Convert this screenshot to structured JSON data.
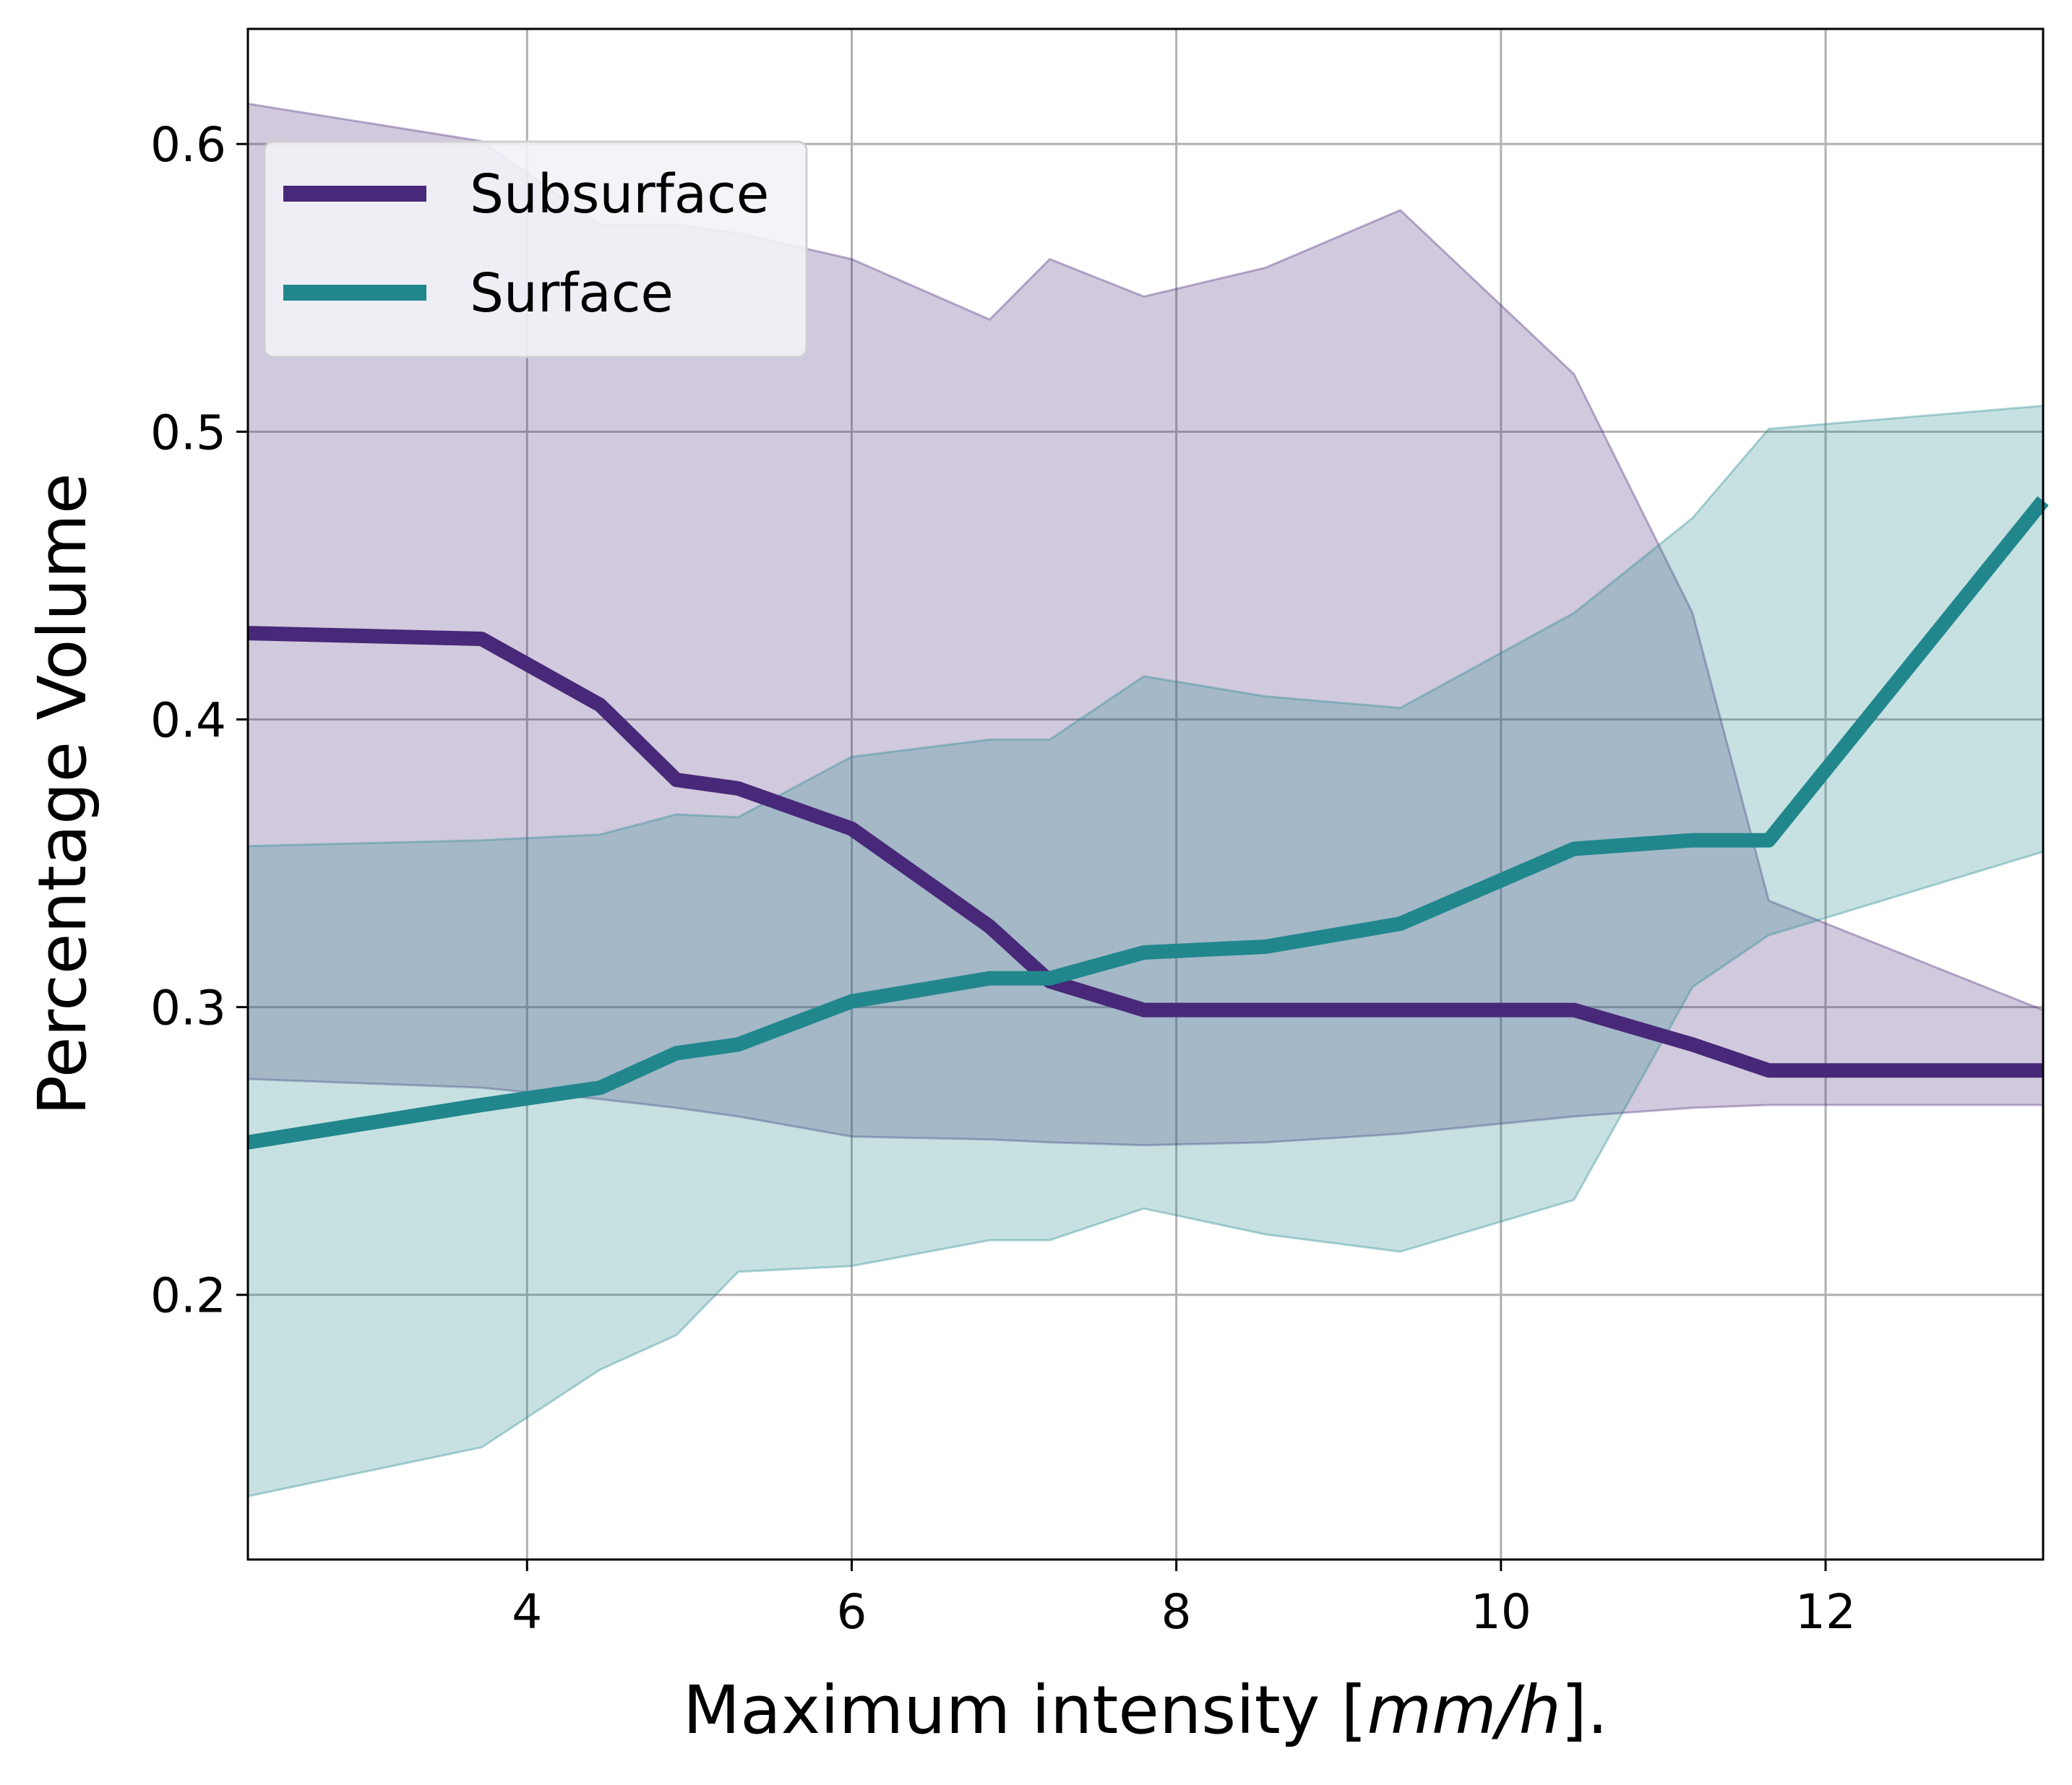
{
  "chart_data": {
    "type": "line",
    "xlabel_main": "Maximum intensity [",
    "xlabel_italic": "mm/h",
    "xlabel_end": "].",
    "ylabel": "Percentage Volume",
    "xlim": [
      2.28,
      13.34
    ],
    "ylim": [
      0.108,
      0.64
    ],
    "x_ticks": [
      4,
      6,
      8,
      10,
      12
    ],
    "x_tick_labels": [
      "4",
      "6",
      "8",
      "10",
      "12"
    ],
    "y_ticks": [
      0.2,
      0.3,
      0.4,
      0.5,
      0.6
    ],
    "y_tick_labels": [
      "0.2",
      "0.3",
      "0.4",
      "0.5",
      "0.6"
    ],
    "grid": true,
    "legend_position": "top-left",
    "series": [
      {
        "name": "Subsurface",
        "color": "#482878",
        "x": [
          2.28,
          3.72,
          4.45,
          4.92,
          5.3,
          6.0,
          6.85,
          7.22,
          7.8,
          8.55,
          9.38,
          10.45,
          11.18,
          11.65,
          13.34
        ],
        "y": [
          0.43,
          0.428,
          0.405,
          0.379,
          0.376,
          0.362,
          0.328,
          0.309,
          0.299,
          0.299,
          0.299,
          0.299,
          0.287,
          0.278,
          0.278
        ],
        "band_upper": [
          0.614,
          0.601,
          0.572,
          0.572,
          0.569,
          0.56,
          0.539,
          0.56,
          0.547,
          0.557,
          0.577,
          0.52,
          0.437,
          0.337,
          0.299
        ],
        "band_lower": [
          0.275,
          0.272,
          0.268,
          0.265,
          0.262,
          0.255,
          0.254,
          0.253,
          0.252,
          0.253,
          0.256,
          0.262,
          0.265,
          0.266,
          0.266
        ]
      },
      {
        "name": "Surface",
        "color": "#21878d",
        "x": [
          2.28,
          3.72,
          4.45,
          4.92,
          5.3,
          6.0,
          6.85,
          7.22,
          7.8,
          8.55,
          9.38,
          10.45,
          11.18,
          11.65,
          13.34
        ],
        "y": [
          0.253,
          0.266,
          0.272,
          0.284,
          0.287,
          0.302,
          0.31,
          0.31,
          0.319,
          0.321,
          0.329,
          0.355,
          0.358,
          0.358,
          0.476
        ],
        "band_upper": [
          0.356,
          0.358,
          0.36,
          0.367,
          0.366,
          0.387,
          0.393,
          0.393,
          0.415,
          0.408,
          0.404,
          0.437,
          0.47,
          0.501,
          0.509
        ],
        "band_lower": [
          0.13,
          0.147,
          0.174,
          0.186,
          0.208,
          0.21,
          0.219,
          0.219,
          0.23,
          0.221,
          0.215,
          0.233,
          0.307,
          0.325,
          0.354
        ]
      }
    ]
  }
}
